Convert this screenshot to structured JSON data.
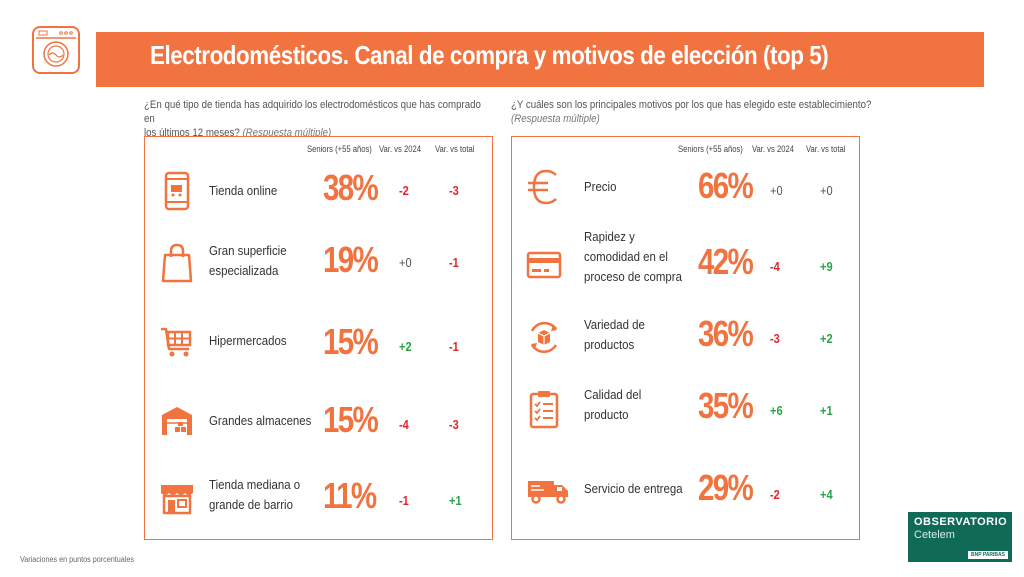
{
  "header": {
    "title": "Electrodomésticos. Canal de compra y motivos de elección (top 5)"
  },
  "left": {
    "question": "¿En qué tipo de tienda has adquirido los electrodomésticos que has comprado en",
    "question2": "los últimos 12 meses?",
    "note": "(Respuesta múltiple)",
    "col_seniors": "Seniors (+55 años)",
    "col_var2024": "Var. vs 2024",
    "col_vartotal": "Var. vs total"
  },
  "right": {
    "question": "¿Y cuáles son los principales motivos por los que has elegido este establecimiento?",
    "note": "(Respuesta múltiple)",
    "col_seniors": "Seniors (+55 años)",
    "col_var2024": "Var. vs 2024",
    "col_vartotal": "Var. vs total"
  },
  "chart_data": [
    {
      "type": "table",
      "title": "¿En qué tipo de tienda has adquirido los electrodomésticos que has comprado en los últimos 12 meses?",
      "rows": [
        {
          "line1": "Tienda online",
          "line2": "",
          "icon": "smartphone-cart-icon",
          "pct": "38%",
          "var2024": "-2",
          "vartotal": "-3"
        },
        {
          "line1": "Gran superficie",
          "line2": "especializada",
          "icon": "shopping-bag-icon",
          "pct": "19%",
          "var2024": "+0",
          "vartotal": "-1"
        },
        {
          "line1": "Hipermercados",
          "line2": "",
          "icon": "shopping-cart-icon",
          "pct": "15%",
          "var2024": "+2",
          "vartotal": "-1"
        },
        {
          "line1": "Grandes almacenes",
          "line2": "",
          "icon": "warehouse-icon",
          "pct": "15%",
          "var2024": "-4",
          "vartotal": "-3"
        },
        {
          "line1": "Tienda mediana o",
          "line2": "grande de barrio",
          "icon": "storefront-icon",
          "pct": "11%",
          "var2024": "-1",
          "vartotal": "+1"
        }
      ]
    },
    {
      "type": "table",
      "title": "¿Y cuáles son los principales motivos por los que has elegido este establecimiento?",
      "rows": [
        {
          "line1": "Precio",
          "line2": "",
          "line3": "",
          "icon": "euro-icon",
          "pct": "66%",
          "var2024": "+0",
          "vartotal": "+0"
        },
        {
          "line1": "Rapidez y",
          "line2": "comodidad en el",
          "line3": "proceso de compra",
          "icon": "credit-card-icon",
          "pct": "42%",
          "var2024": "-4",
          "vartotal": "+9"
        },
        {
          "line1": "Variedad de",
          "line2": "productos",
          "line3": "",
          "icon": "box-cycle-icon",
          "pct": "36%",
          "var2024": "-3",
          "vartotal": "+2"
        },
        {
          "line1": "Calidad del",
          "line2": "producto",
          "line3": "",
          "icon": "clipboard-checklist-icon",
          "pct": "35%",
          "var2024": "+6",
          "vartotal": "+1"
        },
        {
          "line1": "Servicio de entrega",
          "line2": "",
          "line3": "",
          "icon": "delivery-truck-icon",
          "pct": "29%",
          "var2024": "-2",
          "vartotal": "+4"
        }
      ]
    }
  ],
  "colors": {
    "accent": "#f07340",
    "negative": "#e0262c",
    "positive": "#29a344",
    "logo_green": "#0f6b56"
  },
  "footer": {
    "note": "Variaciones en puntos porcentuales"
  },
  "logo": {
    "line1": "OBSERVATORIO",
    "line2": "Cetelem",
    "bnp": "BNP PARIBAS"
  }
}
